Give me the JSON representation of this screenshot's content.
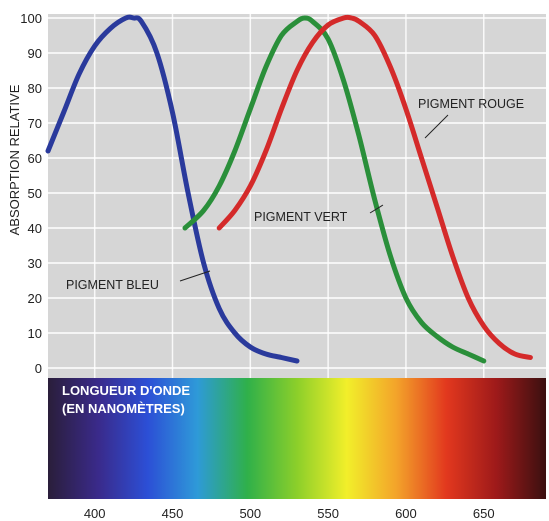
{
  "chart_data": {
    "type": "line",
    "ylabel": "ABSORPTION RELATIVE",
    "xlabel_lines": [
      "LONGUEUR D'ONDE",
      "(EN NANOMÈTRES)"
    ],
    "xlim": [
      370,
      690
    ],
    "ylim": [
      0,
      100
    ],
    "x_ticks": [
      400,
      450,
      500,
      550,
      600,
      650
    ],
    "y_ticks": [
      0,
      10,
      20,
      30,
      40,
      50,
      60,
      70,
      80,
      90,
      100
    ],
    "grid": true,
    "series": [
      {
        "name": "PIGMENT BLEU",
        "color": "#2a3a9c",
        "x": [
          370,
          380,
          390,
          400,
          410,
          420,
          425,
          430,
          440,
          450,
          460,
          470,
          480,
          490,
          500,
          510,
          520,
          530
        ],
        "y": [
          62,
          73,
          84,
          92,
          97,
          100,
          100,
          99,
          90,
          73,
          50,
          30,
          17,
          10,
          6,
          4,
          3,
          2
        ]
      },
      {
        "name": "PIGMENT VERT",
        "color": "#2a8f3a",
        "x": [
          458,
          470,
          480,
          490,
          500,
          510,
          520,
          530,
          535,
          540,
          550,
          560,
          570,
          580,
          590,
          600,
          610,
          620,
          630,
          640,
          650
        ],
        "y": [
          40,
          45,
          52,
          62,
          74,
          86,
          95,
          99,
          100,
          99,
          94,
          82,
          66,
          48,
          32,
          20,
          13,
          9,
          6,
          4,
          2
        ]
      },
      {
        "name": "PIGMENT ROUGE",
        "color": "#d42a2a",
        "x": [
          480,
          490,
          500,
          510,
          520,
          530,
          540,
          550,
          560,
          565,
          570,
          580,
          590,
          600,
          610,
          620,
          630,
          640,
          650,
          660,
          670,
          680
        ],
        "y": [
          40,
          45,
          52,
          62,
          74,
          85,
          93,
          98,
          100,
          100,
          99,
          95,
          86,
          74,
          60,
          46,
          32,
          20,
          12,
          7,
          4,
          3
        ]
      }
    ]
  },
  "colors": {
    "spectrum": [
      "#2a1e3a",
      "#3a2a8a",
      "#2c4fd6",
      "#2e9ad8",
      "#2fb04a",
      "#8ccf2a",
      "#f2ef2a",
      "#f3a32a",
      "#e2381e",
      "#9e1a1a",
      "#3a1010"
    ]
  }
}
